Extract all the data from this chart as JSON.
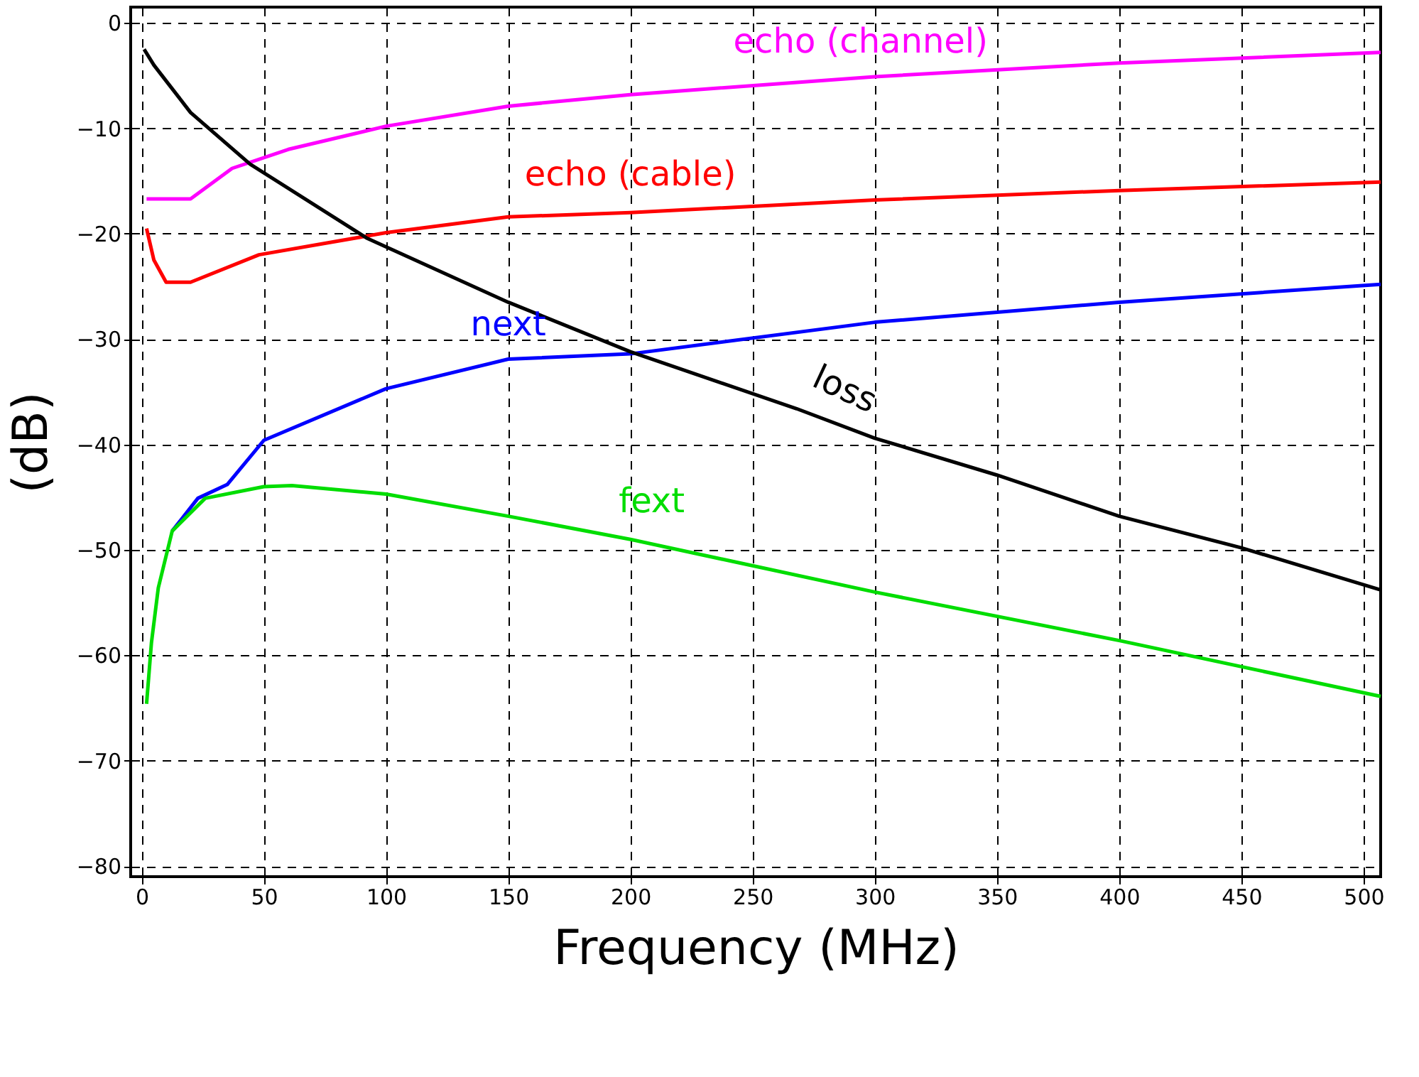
{
  "chart_data": {
    "type": "line",
    "xlabel": "Frequency (MHz)",
    "ylabel": "(dB)",
    "xlim": [
      -4.5,
      507
    ],
    "ylim": [
      -81,
      1.5
    ],
    "xticks": [
      0,
      50,
      100,
      150,
      200,
      250,
      300,
      350,
      400,
      450,
      500
    ],
    "yticks": [
      0,
      -10,
      -20,
      -30,
      -40,
      -50,
      -60,
      -70,
      -80
    ],
    "grid": true,
    "marker": "none",
    "line_style": "solid",
    "series": [
      {
        "name": "echo (channel)",
        "color": "#ff00ff",
        "x": [
          2,
          20,
          37,
          60,
          100,
          150,
          200,
          300,
          400,
          507
        ],
        "values": [
          -16.7,
          -16.7,
          -13.8,
          -12,
          -9.8,
          -7.9,
          -6.8,
          -5.1,
          -3.8,
          -2.8
        ]
      },
      {
        "name": "echo (cable)",
        "color": "#ff0000",
        "x": [
          2,
          5,
          10,
          20,
          48,
          100,
          150,
          200,
          300,
          400,
          507
        ],
        "values": [
          -19.5,
          -22.5,
          -24.6,
          -24.6,
          -22,
          -19.9,
          -18.4,
          -18,
          -16.8,
          -15.9,
          -15.1
        ]
      },
      {
        "name": "next",
        "color": "#0000ff",
        "x": [
          12.5,
          23,
          35,
          50,
          100,
          150,
          200,
          300,
          400,
          507
        ],
        "values": [
          -48.2,
          -45.1,
          -43.8,
          -39.6,
          -34.7,
          -31.9,
          -31.4,
          -28.4,
          -26.5,
          -24.8
        ]
      },
      {
        "name": "loss",
        "color": "#000000",
        "x": [
          1,
          5,
          10,
          20,
          44.4,
          92,
          150,
          200,
          268,
          300,
          350,
          400,
          450,
          507
        ],
        "values": [
          -2.5,
          -4,
          -5.5,
          -8.5,
          -13.4,
          -20.4,
          -26.5,
          -31.2,
          -36.6,
          -39.4,
          -42.9,
          -46.8,
          -49.8,
          -53.8
        ]
      },
      {
        "name": "fext",
        "color": "#00dd00",
        "x": [
          2,
          4,
          6.8,
          12.5,
          26,
          50,
          61.5,
          100,
          150,
          200,
          300,
          400,
          507
        ],
        "values": [
          -64.6,
          -58.8,
          -53.6,
          -48.2,
          -45.1,
          -44,
          -43.9,
          -44.7,
          -46.8,
          -49,
          -54,
          -58.6,
          -63.9
        ]
      }
    ]
  }
}
